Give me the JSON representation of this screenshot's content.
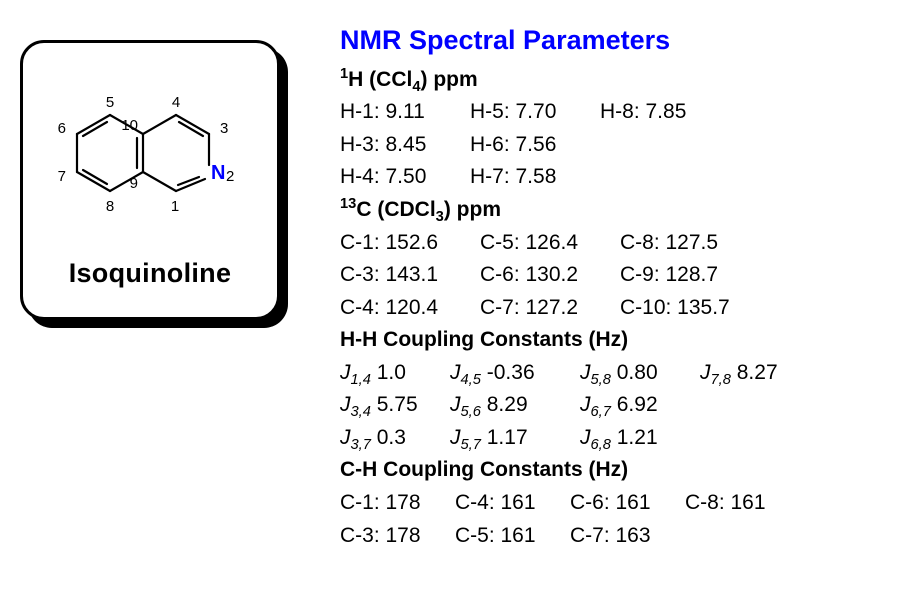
{
  "compound": {
    "name": "Isoquinoline",
    "structure": {
      "atom_labels": [
        "1",
        "3",
        "4",
        "5",
        "6",
        "7",
        "8",
        "9",
        "10"
      ],
      "hetero_label": "N",
      "hetero_index": "2",
      "bond_color": "#000000",
      "nitrogen_color": "#0000ff",
      "label_color": "#000000",
      "bond_width": 2
    }
  },
  "title": "NMR Spectral Parameters",
  "h_nmr": {
    "header_pre": "1",
    "header_main": "H (CCl",
    "header_sub": "4",
    "header_post": ") ppm",
    "rows": [
      [
        {
          "label": "H-1:",
          "val": "9.11"
        },
        {
          "label": "H-5:",
          "val": "7.70"
        },
        {
          "label": "H-8:",
          "val": "7.85"
        }
      ],
      [
        {
          "label": "H-3:",
          "val": "8.45"
        },
        {
          "label": "H-6:",
          "val": "7.56"
        }
      ],
      [
        {
          "label": "H-4:",
          "val": "7.50"
        },
        {
          "label": "H-7:",
          "val": "7.58"
        }
      ]
    ]
  },
  "c_nmr": {
    "header_pre": "13",
    "header_main": "C (CDCl",
    "header_sub": "3",
    "header_post": ") ppm",
    "rows": [
      [
        {
          "label": "C-1:",
          "val": "152.6"
        },
        {
          "label": "C-5:",
          "val": "126.4"
        },
        {
          "label": "C-8:",
          "val": "127.5"
        }
      ],
      [
        {
          "label": "C-3:",
          "val": "143.1"
        },
        {
          "label": "C-6:",
          "val": "130.2"
        },
        {
          "label": "C-9:",
          "val": "128.7"
        }
      ],
      [
        {
          "label": "C-4:",
          "val": "120.4"
        },
        {
          "label": "C-7:",
          "val": "127.2"
        },
        {
          "label": "C-10:",
          "val": "135.7"
        }
      ]
    ]
  },
  "hh_coupling": {
    "header": "H-H Coupling Constants (Hz)",
    "rows": [
      [
        {
          "sub": "1,4",
          "val": "1.0"
        },
        {
          "sub": "4,5",
          "val": "-0.36"
        },
        {
          "sub": "5,8",
          "val": "0.80"
        },
        {
          "sub": "7,8",
          "val": "8.27"
        }
      ],
      [
        {
          "sub": "3,4",
          "val": "5.75"
        },
        {
          "sub": "5,6",
          "val": "8.29"
        },
        {
          "sub": "6,7",
          "val": "6.92"
        }
      ],
      [
        {
          "sub": "3,7",
          "val": "0.3"
        },
        {
          "sub": "5,7",
          "val": "1.17"
        },
        {
          "sub": "6,8",
          "val": "1.21"
        }
      ]
    ]
  },
  "ch_coupling": {
    "header": "C-H Coupling Constants (Hz)",
    "rows": [
      [
        {
          "label": "C-1:",
          "val": "178"
        },
        {
          "label": "C-4:",
          "val": "161"
        },
        {
          "label": "C-6:",
          "val": "161"
        },
        {
          "label": "C-8:",
          "val": "161"
        }
      ],
      [
        {
          "label": "C-3:",
          "val": "178"
        },
        {
          "label": "C-5:",
          "val": "161"
        },
        {
          "label": "C-7:",
          "val": "163"
        }
      ]
    ]
  },
  "layout": {
    "h_cell_widths": [
      130,
      130,
      120
    ],
    "c_cell_widths": [
      140,
      140,
      130
    ],
    "j_cell_widths": [
      110,
      130,
      120,
      110
    ],
    "ch_cell_widths": [
      115,
      115,
      115,
      110
    ]
  }
}
